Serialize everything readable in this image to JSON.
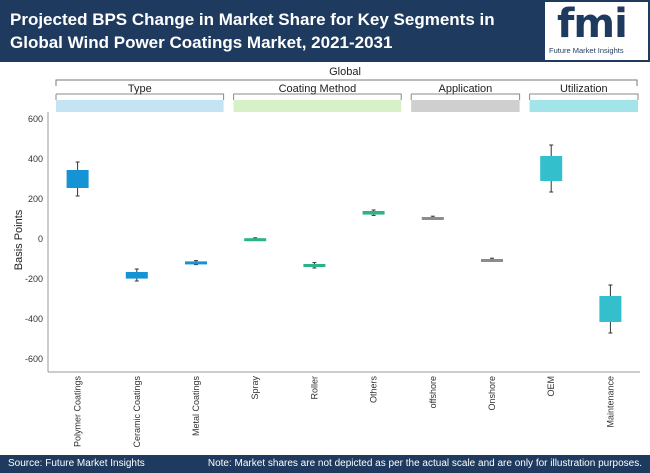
{
  "header": {
    "title": "Projected BPS Change in Market Share for Key Segments in Global Wind Power Coatings Market, 2021-2031",
    "logo_text": "fmi",
    "logo_subtitle": "Future Market Insights"
  },
  "footer": {
    "source": "Source: Future Market Insights",
    "note": "Note: Market shares are not depicted as per the actual scale and are only for illustration purposes."
  },
  "chart_data": {
    "type": "box",
    "top_label": "Global",
    "ylabel": "Basis Points",
    "ylim": [
      -650,
      600
    ],
    "yticks": [
      600,
      400,
      200,
      0,
      -200,
      -400,
      -600
    ],
    "groups": [
      {
        "label": "Type",
        "color": "#c5e4f3"
      },
      {
        "label": "Coating Method",
        "color": "#d8f0c8"
      },
      {
        "label": "Application",
        "color": "#cfcfcf"
      },
      {
        "label": "Utilization",
        "color": "#a3e4e8"
      }
    ],
    "categories": [
      "Polymer Coatings",
      "Ceramic Coatings",
      "Metal Coatings",
      "Spray",
      "Roller",
      "Others",
      "offshore",
      "Onshore",
      "OEM",
      "Maintenance"
    ],
    "boxes": [
      {
        "category": "Polymer Coatings",
        "group": "Type",
        "low": 215,
        "q1": 255,
        "q3": 345,
        "high": 385,
        "color": "#1593d5"
      },
      {
        "category": "Ceramic Coatings",
        "group": "Type",
        "low": -210,
        "q1": -198,
        "q3": -165,
        "high": -150,
        "color": "#1593d5"
      },
      {
        "category": "Metal Coatings",
        "group": "Type",
        "low": -128,
        "q1": -124,
        "q3": -112,
        "high": -108,
        "color": "#1593d5"
      },
      {
        "category": "Spray",
        "group": "Coating Method",
        "low": -6,
        "q1": -4,
        "q3": 4,
        "high": 6,
        "color": "#2bb38a"
      },
      {
        "category": "Roller",
        "group": "Coating Method",
        "low": -145,
        "q1": -138,
        "q3": -125,
        "high": -118,
        "color": "#2bb38a"
      },
      {
        "category": "Others",
        "group": "Coating Method",
        "low": 118,
        "q1": 122,
        "q3": 140,
        "high": 145,
        "color": "#2bb38a"
      },
      {
        "category": "offshore",
        "group": "Application",
        "low": 98,
        "q1": 102,
        "q3": 110,
        "high": 114,
        "color": "#8c8c8c"
      },
      {
        "category": "Onshore",
        "group": "Application",
        "low": -112,
        "q1": -108,
        "q3": -100,
        "high": -96,
        "color": "#8c8c8c"
      },
      {
        "category": "OEM",
        "group": "Utilization",
        "low": 235,
        "q1": 290,
        "q3": 415,
        "high": 470,
        "color": "#33bfcc"
      },
      {
        "category": "Maintenance",
        "group": "Utilization",
        "low": -470,
        "q1": -415,
        "q3": -285,
        "high": -230,
        "color": "#33bfcc"
      }
    ]
  }
}
